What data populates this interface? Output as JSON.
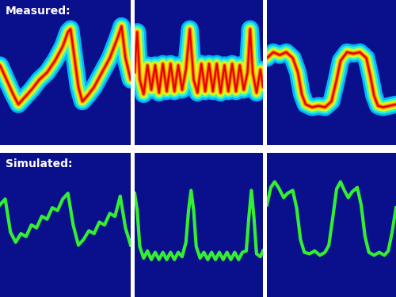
{
  "chart_data": [
    {
      "type": "line",
      "title": "Measured:",
      "tick_labels": false,
      "xlim": [
        0,
        100
      ],
      "ylim": [
        0,
        100
      ],
      "x": [
        0,
        5,
        10,
        14,
        18,
        24,
        30,
        36,
        42,
        48,
        52,
        54,
        57,
        60,
        63,
        67,
        72,
        78,
        84,
        90,
        93,
        96,
        100
      ],
      "series": [
        {
          "line_style": "heat",
          "values": [
            55,
            45,
            35,
            28,
            32,
            38,
            45,
            50,
            58,
            68,
            78,
            80,
            60,
            40,
            30,
            34,
            40,
            50,
            60,
            74,
            82,
            60,
            45
          ]
        }
      ]
    },
    {
      "type": "line",
      "tick_labels": false,
      "xlim": [
        0,
        100
      ],
      "ylim": [
        0,
        100
      ],
      "x": [
        0,
        2,
        4,
        7,
        10,
        13,
        16,
        19,
        22,
        25,
        28,
        31,
        34,
        37,
        40,
        43,
        46,
        49,
        52,
        55,
        58,
        61,
        64,
        67,
        70,
        73,
        76,
        79,
        82,
        85,
        88,
        90,
        92,
        95,
        98,
        100
      ],
      "series": [
        {
          "line_style": "heat",
          "values": [
            50,
            78,
            45,
            35,
            55,
            38,
            55,
            36,
            56,
            37,
            56,
            37,
            55,
            38,
            52,
            80,
            45,
            36,
            56,
            37,
            56,
            37,
            56,
            36,
            55,
            37,
            56,
            37,
            55,
            38,
            50,
            80,
            50,
            36,
            52,
            40
          ]
        }
      ]
    },
    {
      "type": "line",
      "tick_labels": false,
      "xlim": [
        0,
        100
      ],
      "ylim": [
        0,
        100
      ],
      "x": [
        0,
        5,
        10,
        15,
        20,
        24,
        27,
        30,
        35,
        40,
        45,
        50,
        54,
        57,
        62,
        67,
        72,
        77,
        80,
        83,
        86,
        90,
        95,
        100
      ],
      "series": [
        {
          "line_style": "heat",
          "values": [
            60,
            64,
            62,
            64,
            60,
            50,
            35,
            28,
            26,
            27,
            26,
            30,
            45,
            58,
            64,
            63,
            64,
            60,
            48,
            34,
            27,
            26,
            27,
            28
          ]
        }
      ]
    },
    {
      "type": "line",
      "title": "Simulated:",
      "tick_labels": false,
      "xlim": [
        0,
        100
      ],
      "ylim": [
        0,
        100
      ],
      "x": [
        0,
        4,
        8,
        12,
        16,
        20,
        24,
        28,
        32,
        36,
        40,
        44,
        48,
        52,
        56,
        60,
        64,
        68,
        72,
        76,
        80,
        84,
        88,
        92,
        96,
        100
      ],
      "series": [
        {
          "line_style": "solid",
          "color": "#33ee33",
          "values": [
            64,
            68,
            45,
            38,
            44,
            42,
            50,
            48,
            56,
            54,
            62,
            60,
            68,
            72,
            50,
            36,
            40,
            46,
            44,
            52,
            50,
            58,
            56,
            70,
            48,
            36
          ]
        }
      ]
    },
    {
      "type": "line",
      "tick_labels": false,
      "xlim": [
        0,
        100
      ],
      "ylim": [
        0,
        100
      ],
      "x": [
        0,
        2,
        4,
        7,
        10,
        13,
        16,
        19,
        22,
        25,
        28,
        31,
        34,
        37,
        40,
        42,
        44,
        46,
        48,
        51,
        54,
        57,
        60,
        63,
        66,
        69,
        72,
        75,
        78,
        81,
        84,
        87,
        89,
        91,
        93,
        95,
        98,
        100
      ],
      "series": [
        {
          "line_style": "solid",
          "color": "#33ee33",
          "values": [
            72,
            60,
            35,
            27,
            32,
            26,
            31,
            26,
            31,
            26,
            31,
            26,
            31,
            28,
            38,
            60,
            74,
            60,
            35,
            27,
            31,
            26,
            31,
            26,
            31,
            26,
            31,
            26,
            31,
            26,
            31,
            32,
            55,
            74,
            55,
            30,
            28,
            32
          ]
        }
      ]
    },
    {
      "type": "line",
      "tick_labels": false,
      "xlim": [
        0,
        100
      ],
      "ylim": [
        0,
        100
      ],
      "x": [
        0,
        3,
        6,
        9,
        13,
        16,
        20,
        23,
        26,
        29,
        33,
        37,
        41,
        45,
        48,
        51,
        54,
        57,
        60,
        63,
        66,
        70,
        73,
        76,
        79,
        83,
        87,
        91,
        94,
        97,
        100
      ],
      "series": [
        {
          "line_style": "solid",
          "color": "#33ee33",
          "values": [
            64,
            76,
            80,
            76,
            69,
            72,
            74,
            62,
            40,
            31,
            30,
            32,
            29,
            31,
            36,
            55,
            75,
            80,
            74,
            69,
            73,
            76,
            64,
            42,
            31,
            29,
            31,
            29,
            32,
            45,
            62
          ]
        }
      ]
    }
  ]
}
